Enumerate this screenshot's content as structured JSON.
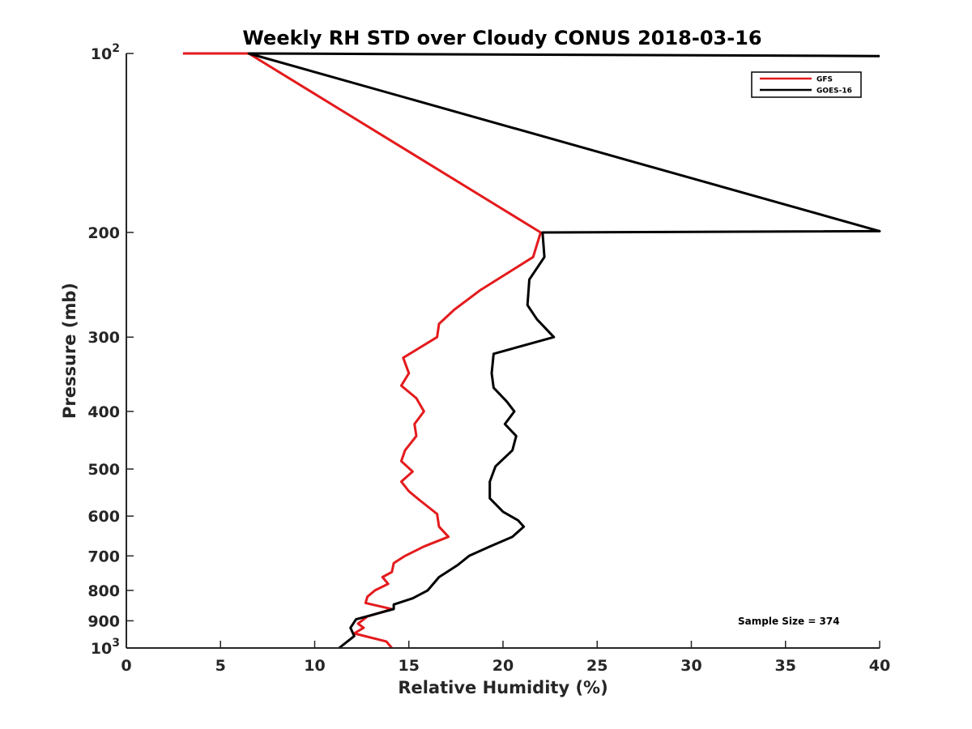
{
  "chart_data": {
    "type": "line",
    "title": "Weekly RH STD over Cloudy CONUS 2018-03-16",
    "xlabel": "Relative Humidity (%)",
    "ylabel": "Pressure (mb)",
    "xlim": [
      0,
      40
    ],
    "ylim": [
      100,
      1000
    ],
    "y_scale": "log",
    "y_reversed": true,
    "x_ticks": [
      "0",
      "5",
      "10",
      "15",
      "20",
      "25",
      "30",
      "35",
      "40"
    ],
    "x_tick_values": [
      0,
      5,
      10,
      15,
      20,
      25,
      30,
      35,
      40
    ],
    "y_ticks": [
      {
        "value": 100,
        "base": "10",
        "exp": "2"
      },
      {
        "value": 200,
        "label": "200"
      },
      {
        "value": 300,
        "label": "300"
      },
      {
        "value": 400,
        "label": "400"
      },
      {
        "value": 500,
        "label": "500"
      },
      {
        "value": 600,
        "label": "600"
      },
      {
        "value": 700,
        "label": "700"
      },
      {
        "value": 800,
        "label": "800"
      },
      {
        "value": 900,
        "label": "900"
      },
      {
        "value": 1000,
        "base": "10",
        "exp": "3"
      }
    ],
    "legend_position": "top-right",
    "annotation": "Sample Size = 374",
    "series": [
      {
        "name": "GFS",
        "color": "#e41a1c",
        "points": [
          [
            3.0,
            100
          ],
          [
            6.5,
            100
          ],
          [
            22.0,
            200
          ],
          [
            21.6,
            220
          ],
          [
            18.8,
            250
          ],
          [
            17.4,
            270
          ],
          [
            16.6,
            285
          ],
          [
            16.5,
            300
          ],
          [
            14.7,
            325
          ],
          [
            15.0,
            345
          ],
          [
            14.6,
            362
          ],
          [
            15.4,
            380
          ],
          [
            15.8,
            400
          ],
          [
            15.3,
            420
          ],
          [
            15.4,
            440
          ],
          [
            14.8,
            465
          ],
          [
            14.6,
            485
          ],
          [
            15.2,
            505
          ],
          [
            14.6,
            525
          ],
          [
            15.0,
            545
          ],
          [
            15.6,
            565
          ],
          [
            16.5,
            595
          ],
          [
            16.6,
            625
          ],
          [
            17.1,
            650
          ],
          [
            15.8,
            675
          ],
          [
            14.8,
            700
          ],
          [
            14.2,
            720
          ],
          [
            14.1,
            745
          ],
          [
            13.6,
            760
          ],
          [
            13.9,
            780
          ],
          [
            13.2,
            800
          ],
          [
            12.8,
            820
          ],
          [
            12.7,
            840
          ],
          [
            14.1,
            860
          ],
          [
            12.8,
            885
          ],
          [
            12.3,
            910
          ],
          [
            12.6,
            925
          ],
          [
            12.1,
            945
          ],
          [
            13.8,
            975
          ],
          [
            14.1,
            1000
          ]
        ]
      },
      {
        "name": "GOES-16",
        "color": "#000000",
        "points": [
          [
            40.0,
            101
          ],
          [
            6.5,
            100
          ],
          [
            40.0,
            199
          ],
          [
            22.1,
            200
          ],
          [
            22.2,
            220
          ],
          [
            21.4,
            240
          ],
          [
            21.3,
            265
          ],
          [
            21.8,
            280
          ],
          [
            22.7,
            300
          ],
          [
            19.5,
            320
          ],
          [
            19.4,
            345
          ],
          [
            19.5,
            365
          ],
          [
            20.2,
            385
          ],
          [
            20.6,
            400
          ],
          [
            20.1,
            420
          ],
          [
            20.7,
            440
          ],
          [
            20.5,
            465
          ],
          [
            19.6,
            495
          ],
          [
            19.3,
            525
          ],
          [
            19.3,
            560
          ],
          [
            20.0,
            590
          ],
          [
            20.8,
            610
          ],
          [
            21.1,
            625
          ],
          [
            20.5,
            650
          ],
          [
            19.3,
            675
          ],
          [
            18.2,
            700
          ],
          [
            17.6,
            725
          ],
          [
            16.6,
            760
          ],
          [
            16.0,
            800
          ],
          [
            15.2,
            825
          ],
          [
            14.2,
            845
          ],
          [
            14.2,
            860
          ],
          [
            12.2,
            895
          ],
          [
            11.9,
            925
          ],
          [
            12.1,
            955
          ],
          [
            11.3,
            1000
          ]
        ]
      }
    ]
  }
}
